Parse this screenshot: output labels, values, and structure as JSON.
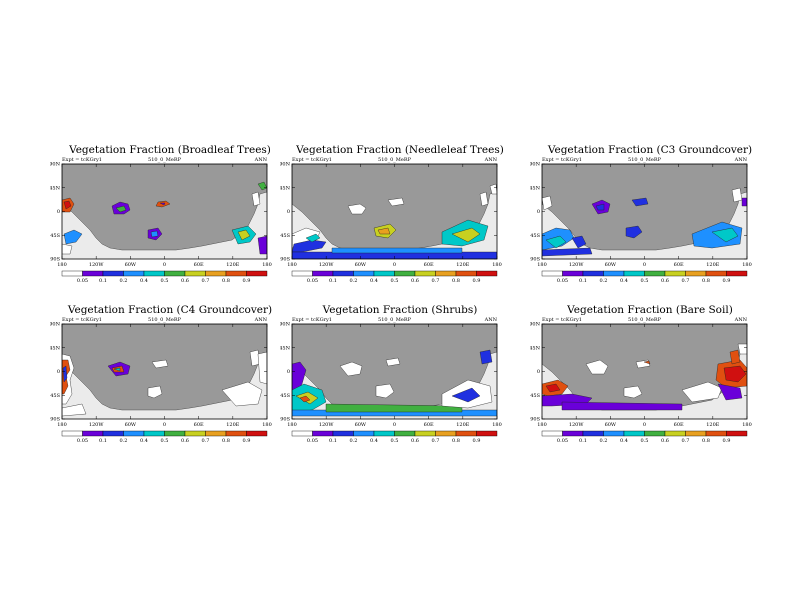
{
  "common": {
    "expt_label": "Expt = tcKGry1",
    "run_label": "510_0_MeRP",
    "season_label": "ANN",
    "lat_ticks": [
      "90N",
      "45N",
      "0",
      "45S",
      "90S"
    ],
    "lon_ticks": [
      "180",
      "120W",
      "60W",
      "0",
      "60E",
      "120E",
      "180"
    ],
    "colorbar_ticks": [
      "0.05",
      "0.1",
      "0.2",
      "0.4",
      "0.5",
      "0.6",
      "0.7",
      "0.8",
      "0.9"
    ],
    "colors": {
      "land": "#999999",
      "ocean": "#ebebeb",
      "bins": [
        "#ffffff",
        "#6a00d9",
        "#2030e0",
        "#1e90ff",
        "#00c8c8",
        "#40b040",
        "#c8d020",
        "#e8a020",
        "#e05010",
        "#d01010"
      ]
    }
  },
  "panels": [
    {
      "title": "Vegetation Fraction (Broadleaf Trees)"
    },
    {
      "title": "Vegetation Fraction (Needleleaf Trees)"
    },
    {
      "title": "Vegetation Fraction (C3 Groundcover)"
    },
    {
      "title": "Vegetation Fraction (C4 Groundcover)"
    },
    {
      "title": "Vegetation Fraction (Shrubs)"
    },
    {
      "title": "Vegetation Fraction (Bare Soil)"
    }
  ]
}
